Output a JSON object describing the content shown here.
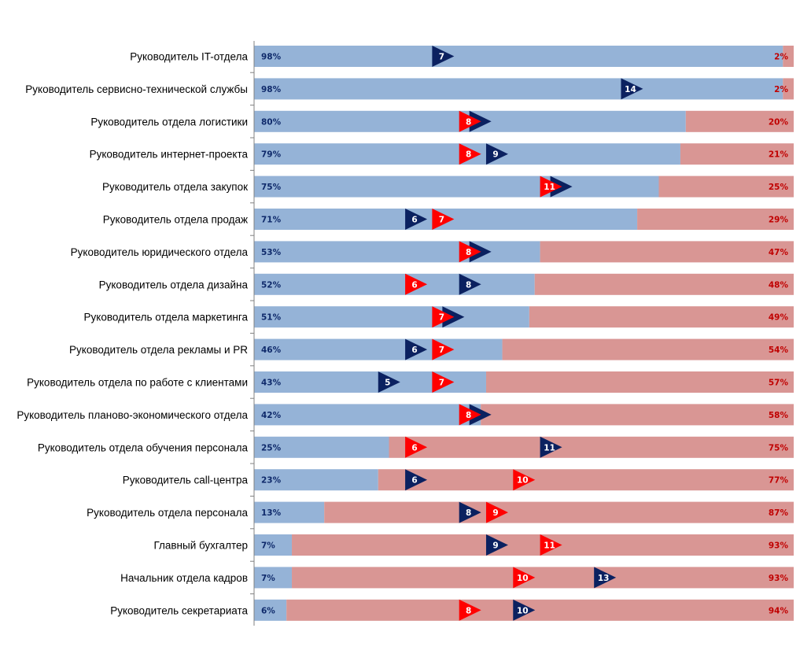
{
  "chart_data": {
    "type": "bar",
    "subtype": "stacked-horizontal-100-with-markers",
    "title": "",
    "xlabel": "",
    "ylabel": "",
    "xlim_percent": [
      0,
      100
    ],
    "marker_axis_range": [
      0.4,
      20.4
    ],
    "grid": false,
    "legend": "none",
    "colors": {
      "share_a": "#95b3d7",
      "share_b": "#d99694",
      "share_a_label": "#0f2a6b",
      "share_b_label": "#c00000",
      "marker_navy": "#0b2160",
      "marker_red": "#ff0000",
      "marker_label": "#ffffff",
      "axis": "#808080"
    },
    "categories": [
      "Руководитель IT-отдела",
      "Руководитель сервисно-технической службы",
      "Руководитель отдела логистики",
      "Руководитель интернет-проекта",
      "Руководитель отдела закупок",
      "Руководитель отдела продаж",
      "Руководитель юридического отдела",
      "Руководитель отдела дизайна",
      "Руководитель отдела маркетинга",
      "Руководитель отдела рекламы и PR",
      "Руководитель отдела по работе с клиентами",
      "Руководитель планово-экономического отдела",
      "Руководитель отдела обучения персонала",
      "Руководитель call-центра",
      "Руководитель отдела персонала",
      "Главный бухгалтер",
      "Начальник отдела кадров",
      "Руководитель секретариата"
    ],
    "series": [
      {
        "name": "blue share",
        "kind": "bar",
        "unit": "%",
        "values": [
          98,
          98,
          80,
          79,
          75,
          71,
          53,
          52,
          51,
          46,
          43,
          42,
          25,
          23,
          13,
          7,
          7,
          6
        ]
      },
      {
        "name": "pink share",
        "kind": "bar",
        "unit": "%",
        "values": [
          2,
          2,
          20,
          21,
          25,
          29,
          47,
          48,
          49,
          54,
          57,
          58,
          75,
          77,
          87,
          93,
          93,
          94
        ]
      },
      {
        "name": "navy marker",
        "kind": "marker",
        "values": [
          7,
          14,
          8,
          9,
          11,
          6,
          8,
          8,
          7,
          6,
          5,
          8,
          11,
          6,
          8,
          9,
          13,
          10
        ]
      },
      {
        "name": "red marker",
        "kind": "marker",
        "values": [
          null,
          null,
          8,
          8,
          11,
          7,
          8,
          6,
          7,
          7,
          7,
          8,
          6,
          10,
          9,
          11,
          10,
          8
        ]
      }
    ]
  }
}
